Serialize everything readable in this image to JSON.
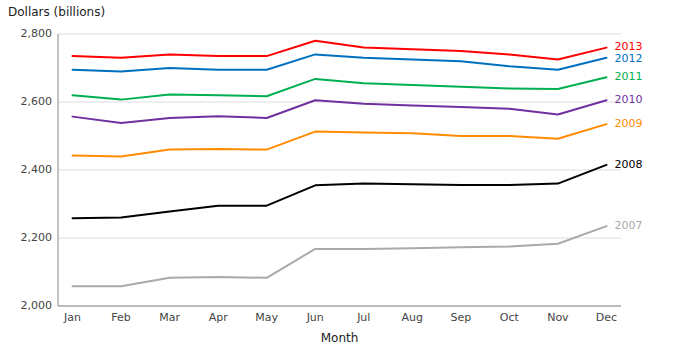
{
  "chart_data": {
    "type": "line",
    "ylabel": "Dollars (billions)",
    "xlabel": "Month",
    "categories": [
      "Jan",
      "Feb",
      "Mar",
      "Apr",
      "May",
      "Jun",
      "Jul",
      "Aug",
      "Sep",
      "Oct",
      "Nov",
      "Dec"
    ],
    "series": [
      {
        "name": "2007",
        "color": "#aaaaaa",
        "values": [
          2058,
          2058,
          2083,
          2085,
          2083,
          2168,
          2168,
          2170,
          2173,
          2175,
          2183,
          2235
        ]
      },
      {
        "name": "2008",
        "color": "#000000",
        "values": [
          2258,
          2260,
          2278,
          2295,
          2295,
          2355,
          2360,
          2358,
          2356,
          2356,
          2360,
          2415
        ]
      },
      {
        "name": "2009",
        "color": "#ff8c00",
        "values": [
          2443,
          2440,
          2460,
          2462,
          2460,
          2513,
          2510,
          2508,
          2500,
          2500,
          2492,
          2535
        ]
      },
      {
        "name": "2010",
        "color": "#7030a0",
        "values": [
          2557,
          2538,
          2553,
          2558,
          2553,
          2605,
          2595,
          2590,
          2585,
          2580,
          2563,
          2605
        ]
      },
      {
        "name": "2011",
        "color": "#00b050",
        "values": [
          2620,
          2607,
          2622,
          2620,
          2617,
          2668,
          2655,
          2650,
          2645,
          2640,
          2638,
          2673
        ]
      },
      {
        "name": "2012",
        "color": "#0070c0",
        "values": [
          2695,
          2690,
          2700,
          2695,
          2695,
          2740,
          2730,
          2725,
          2720,
          2705,
          2695,
          2730
        ]
      },
      {
        "name": "2013",
        "color": "#ff0000",
        "values": [
          2735,
          2730,
          2740,
          2735,
          2735,
          2780,
          2760,
          2755,
          2750,
          2740,
          2725,
          2760
        ]
      }
    ],
    "ylim": [
      2000,
      2800
    ],
    "yticks": [
      {
        "value": 2000,
        "label": "2,000"
      },
      {
        "value": 2200,
        "label": "2,200"
      },
      {
        "value": 2400,
        "label": "2,400"
      },
      {
        "value": 2600,
        "label": "2,600"
      },
      {
        "value": 2800,
        "label": "2,800"
      }
    ],
    "grid": true
  }
}
